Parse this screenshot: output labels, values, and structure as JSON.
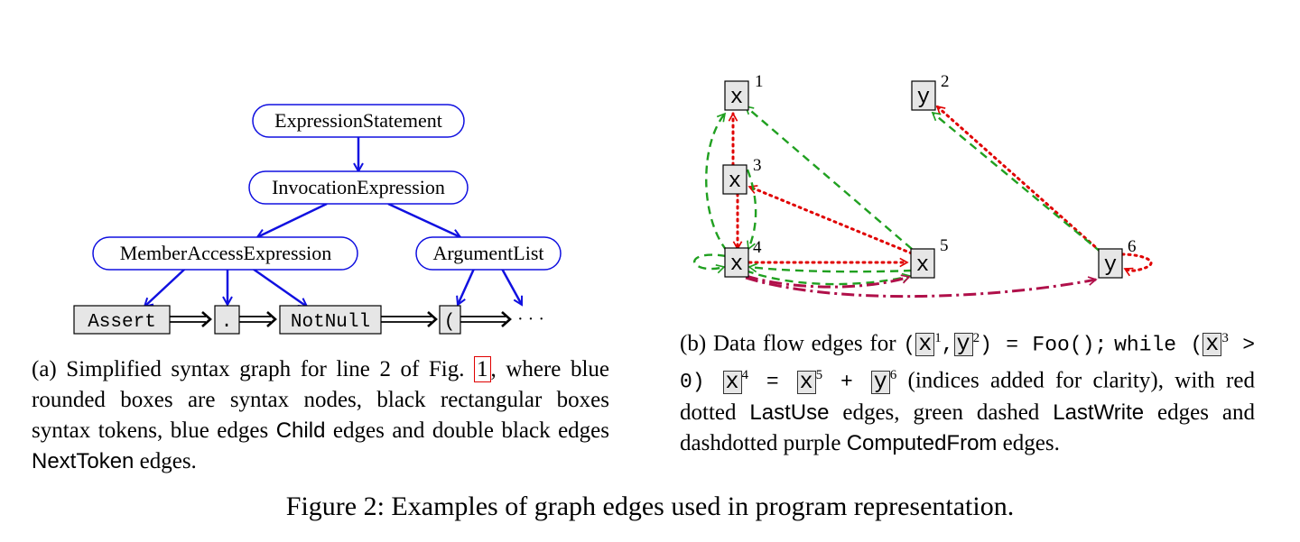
{
  "panel_a": {
    "nodes": {
      "expression_statement": "ExpressionStatement",
      "invocation_expression": "InvocationExpression",
      "member_access_expression": "MemberAccessExpression",
      "argument_list": "ArgumentList"
    },
    "tokens": {
      "assert": "Assert",
      "dot": ".",
      "notnull": "NotNull",
      "paren": "(",
      "ellipsis": "· · ·"
    },
    "caption": {
      "part1": "(a) Simplified syntax graph for line 2 of Fig. ",
      "figref": "1",
      "part2": ", where blue rounded boxes are syntax nodes, black rectangular boxes syntax tokens, blue edges ",
      "child": "Child",
      "part3": " edges and double black edges ",
      "nexttoken": "NextToken",
      "part4": " edges."
    }
  },
  "panel_b": {
    "var_x": "x",
    "var_y": "y",
    "indices": {
      "x1": "1",
      "y2": "2",
      "x3": "3",
      "x4": "4",
      "x5": "5",
      "y6": "6"
    },
    "colors": {
      "last_use": "#e00000",
      "last_write": "#20a020",
      "computed_from": "#b0104a"
    },
    "caption": {
      "part1": "(b) Data flow edges for ",
      "code1a": "(",
      "code1b": ",",
      "code1c": ") = Foo();",
      "code2a": "while (",
      "code2b": " > 0) ",
      "code2c": " = ",
      "code2d": " + ",
      "part2": " (indices added for clarity), with red dotted ",
      "lastuse": "LastUse",
      "part3": " edges, green dashed ",
      "lastwrite": "LastWrite",
      "part4": " edges and dashdotted purple ",
      "computedfrom": "ComputedFrom",
      "part5": " edges."
    }
  },
  "figure_caption": "Figure 2: Examples of graph edges used in program representation."
}
